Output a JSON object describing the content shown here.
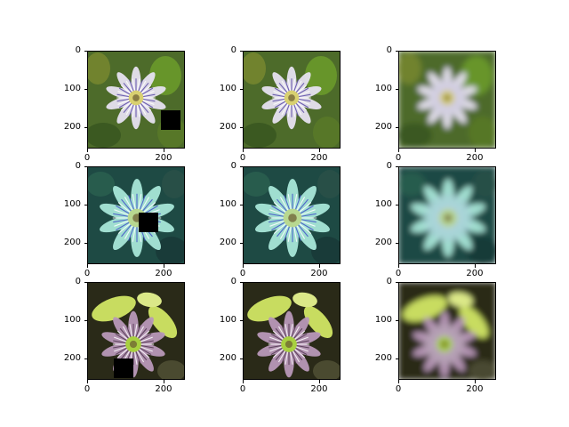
{
  "grid": {
    "rows": 3,
    "columns": 3,
    "y_tick_labels": [
      "0",
      "100",
      "200"
    ],
    "x_tick_labels": [
      "0",
      "200"
    ],
    "y_tick_values": [
      0,
      100,
      200
    ],
    "x_tick_values": [
      0,
      200
    ],
    "image_extent": 256
  },
  "panels": [
    {
      "name": "row1-col1",
      "style": "masked",
      "flower": "passion-flower-purple-white",
      "background": "green-foliage",
      "mask": "black-square-lower-right"
    },
    {
      "name": "row1-col2",
      "style": "original",
      "flower": "passion-flower-purple-white",
      "background": "green-foliage"
    },
    {
      "name": "row1-col3",
      "style": "blurry-reconstruction",
      "flower": "passion-flower-purple-white",
      "background": "green-foliage"
    },
    {
      "name": "row2-col1",
      "style": "masked",
      "flower": "passion-flower-blue",
      "background": "dark-teal-foliage",
      "mask": "black-square-center-right"
    },
    {
      "name": "row2-col2",
      "style": "original",
      "flower": "passion-flower-blue",
      "background": "dark-teal-foliage"
    },
    {
      "name": "row2-col3",
      "style": "blurry-reconstruction",
      "flower": "passion-flower-blue",
      "background": "dark-teal-foliage"
    },
    {
      "name": "row3-col1",
      "style": "masked",
      "flower": "passion-flower-pink",
      "background": "yellow-green-leaves",
      "mask": "black-square-lower-left"
    },
    {
      "name": "row3-col2",
      "style": "original",
      "flower": "passion-flower-pink",
      "background": "yellow-green-leaves"
    },
    {
      "name": "row3-col3",
      "style": "blurry-reconstruction",
      "flower": "passion-flower-pink",
      "background": "yellow-green-leaves"
    }
  ],
  "colors": {
    "row1_bg": "#4d6b2a",
    "row1_petal": "#e6e2f0",
    "row1_filament": "#5a4aa8",
    "row1_center": "#d8d070",
    "row2_bg": "#1e4a44",
    "row2_petal": "#a8e6d8",
    "row2_filament": "#4050c8",
    "row2_center": "#b8d890",
    "row3_bg": "#2a2a18",
    "row3_leaf": "#c8dc60",
    "row3_petal": "#b898b8",
    "row3_filament": "#503850",
    "row3_center": "#a8d040",
    "mask": "#000000"
  }
}
